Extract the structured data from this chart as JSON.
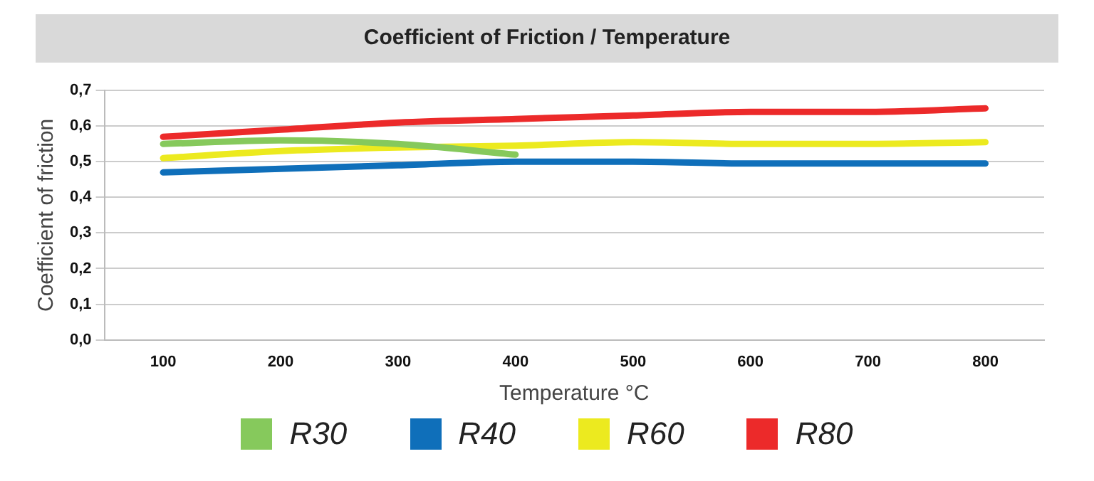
{
  "chart_data": {
    "type": "line",
    "title": "Coefficient of Friction / Temperature",
    "xlabel": "Temperature °C",
    "ylabel": "Coefficient of friction",
    "categories": [
      "100",
      "200",
      "300",
      "400",
      "500",
      "600",
      "700",
      "800"
    ],
    "series": [
      {
        "name": "R30",
        "color": "#86c95c",
        "values": [
          0.55,
          0.56,
          0.55,
          0.52,
          null,
          null,
          null,
          null
        ]
      },
      {
        "name": "R40",
        "color": "#0f6fba",
        "values": [
          0.47,
          0.48,
          0.49,
          0.5,
          0.5,
          0.495,
          0.495,
          0.495
        ]
      },
      {
        "name": "R60",
        "color": "#ecea1f",
        "values": [
          0.51,
          0.53,
          0.54,
          0.545,
          0.555,
          0.55,
          0.55,
          0.555
        ]
      },
      {
        "name": "R80",
        "color": "#ec2a2a",
        "values": [
          0.57,
          0.59,
          0.61,
          0.62,
          0.63,
          0.64,
          0.64,
          0.65
        ]
      }
    ],
    "ylim": [
      0,
      0.7
    ],
    "yticks": [
      {
        "value": 0,
        "label": "0,0"
      },
      {
        "value": 0.1,
        "label": "0,1"
      },
      {
        "value": 0.2,
        "label": "0,2"
      },
      {
        "value": 0.3,
        "label": "0,3"
      },
      {
        "value": 0.4,
        "label": "0,4"
      },
      {
        "value": 0.5,
        "label": "0,5"
      },
      {
        "value": 0.6,
        "label": "0,6"
      },
      {
        "value": 0.7,
        "label": "0,7"
      }
    ],
    "grid": "y",
    "legend": "bottom",
    "marker": "none",
    "line_style": "solid"
  }
}
